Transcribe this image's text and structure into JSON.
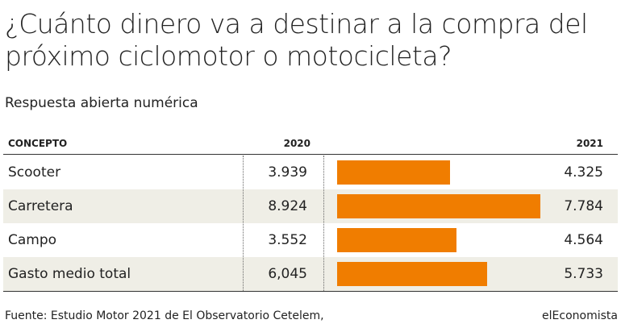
{
  "chart_data": {
    "type": "table-bar",
    "title": "¿Cuánto dinero va a destinar a la compra del próximo ciclomotor o motocicleta?",
    "subtitle": "Respuesta abierta numérica",
    "column_header": "CONCEPTO",
    "categories": [
      "Scooter",
      "Carretera",
      "Campo",
      "Gasto medio total"
    ],
    "series": [
      {
        "name": "2020",
        "values": [
          3939,
          8924,
          3552,
          6045
        ],
        "value_labels": [
          "3.939",
          "8.924",
          "3.552",
          "6,045"
        ]
      },
      {
        "name": "2021",
        "color": "#f07d00",
        "values": [
          4325,
          7784,
          4564,
          5733
        ],
        "value_labels": [
          "4.325",
          "7.784",
          "4.564",
          "5.733"
        ]
      }
    ],
    "source": "Fuente: Estudio Motor 2021 de El Observatorio Cetelem,",
    "brand": "elEconomista"
  }
}
